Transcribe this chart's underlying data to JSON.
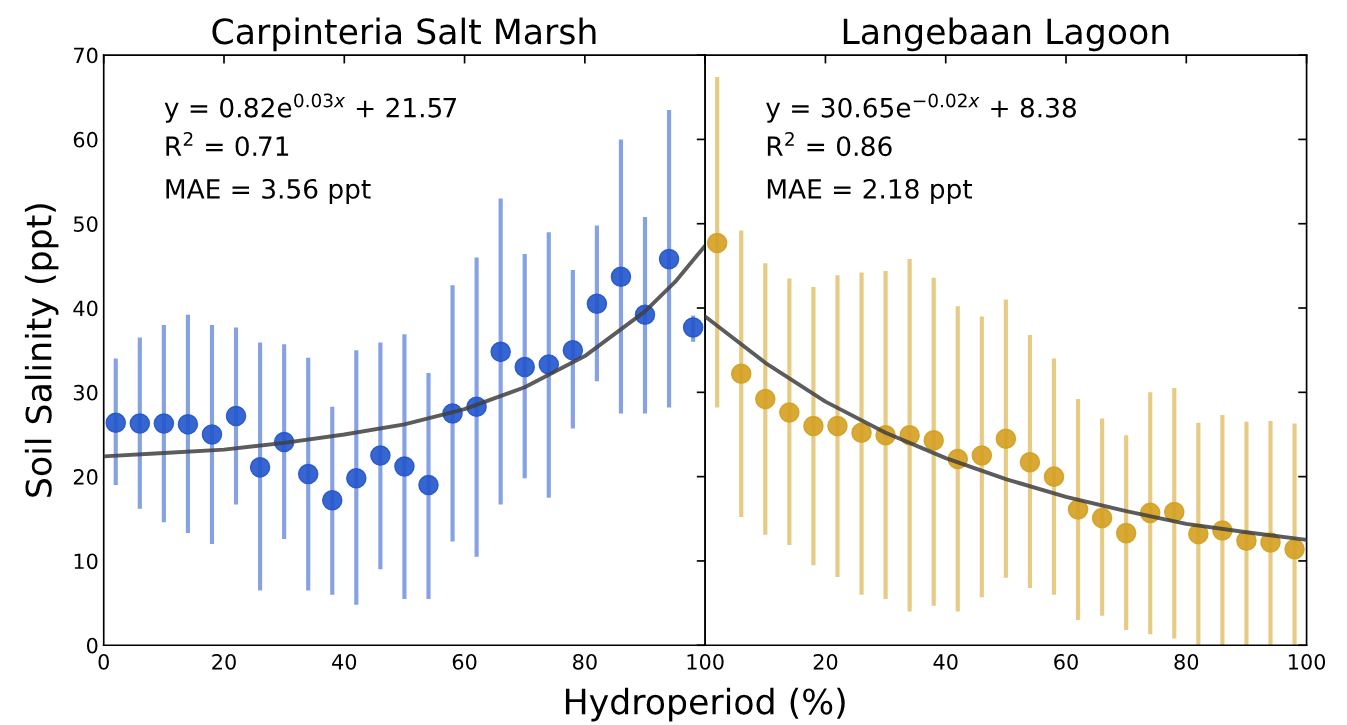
{
  "chart_data": [
    {
      "type": "scatter",
      "title": "Carpinteria Salt Marsh",
      "xlabel": "Hydroperiod (%)",
      "ylabel": "Soil Salinity (ppt)",
      "xlim": [
        0,
        100
      ],
      "ylim": [
        0,
        70
      ],
      "xticks": [
        0,
        20,
        40,
        60,
        80,
        100
      ],
      "yticks": [
        0,
        10,
        20,
        30,
        40,
        50,
        60,
        70
      ],
      "grid": false,
      "annotations": [
        "y = 0.82e$^{0.03x}$ + 21.57",
        "R$^{2}$ = 0.71",
        "MAE = 3.56 ppt"
      ],
      "series": [
        {
          "marker": "circle",
          "color": "#2255cc",
          "x": [
            2,
            6,
            10,
            14,
            18,
            22,
            26,
            30,
            34,
            38,
            42,
            46,
            50,
            54,
            58,
            62,
            66,
            70,
            74,
            78,
            82,
            86,
            90,
            94,
            98
          ],
          "values": [
            26.4,
            26.3,
            26.3,
            26.2,
            25,
            27.2,
            21.1,
            24.1,
            20.3,
            17.2,
            19.8,
            22.5,
            21.2,
            19,
            27.5,
            28.3,
            34.8,
            33,
            33.3,
            35,
            40.5,
            43.7,
            39.2,
            45.8,
            37.7
          ],
          "errors": [
            [
              19,
              34
            ],
            [
              16.2,
              36.5
            ],
            [
              14.6,
              38
            ],
            [
              13.3,
              39.2
            ],
            [
              12,
              38
            ],
            [
              16.7,
              37.7
            ],
            [
              6.5,
              35.9
            ],
            [
              12.6,
              35.7
            ],
            [
              6.5,
              34.1
            ],
            [
              6,
              28.3
            ],
            [
              4.8,
              35
            ],
            [
              9,
              35.9
            ],
            [
              5.5,
              36.9
            ],
            [
              5.5,
              32.3
            ],
            [
              12.3,
              42.7
            ],
            [
              10.5,
              46
            ],
            [
              16.7,
              53
            ],
            [
              19.8,
              46.4
            ],
            [
              17.5,
              49
            ],
            [
              25.7,
              44.5
            ],
            [
              31.3,
              49.8
            ],
            [
              27.5,
              60
            ],
            [
              27.5,
              50.8
            ],
            [
              28.2,
              63.5
            ],
            [
              36,
              39.1
            ]
          ]
        },
        {
          "type": "line",
          "marker": "none",
          "color": "#404040",
          "x": [
            0,
            10,
            20,
            30,
            40,
            50,
            60,
            70,
            80,
            90,
            95,
            100
          ],
          "values": [
            22.4,
            22.8,
            23.2,
            24.0,
            25.0,
            26.2,
            28.0,
            30.6,
            34.3,
            39.6,
            43.1,
            47.4
          ]
        }
      ]
    },
    {
      "type": "scatter",
      "title": "Langebaan Lagoon",
      "tick_labels": "x",
      "xlim": [
        0,
        100
      ],
      "ylim": [
        0,
        70
      ],
      "xticks": [
        {
          "value": 0,
          "label": null
        },
        20,
        40,
        60,
        80,
        100
      ],
      "yticks": [
        0,
        10,
        20,
        30,
        40,
        50,
        60,
        70
      ],
      "grid": false,
      "annotations": [
        "y = 30.65e$^{−0.02x}$ + 8.38",
        "R$^{2}$ = 0.86",
        "MAE = 2.18 ppt"
      ],
      "series": [
        {
          "marker": "circle",
          "color": "#d4a020",
          "x": [
            2,
            6,
            10,
            14,
            18,
            22,
            26,
            30,
            34,
            38,
            42,
            46,
            50,
            54,
            58,
            62,
            66,
            70,
            74,
            78,
            82,
            86,
            90,
            94,
            98
          ],
          "values": [
            47.7,
            32.2,
            29.2,
            27.6,
            26,
            26,
            25.2,
            24.9,
            24.9,
            24.3,
            22.1,
            22.5,
            24.5,
            21.7,
            20,
            16.1,
            15.1,
            13.3,
            15.7,
            15.8,
            13.2,
            13.6,
            12.4,
            12.2,
            11.4
          ],
          "errors": [
            [
              28.2,
              67.4
            ],
            [
              15.2,
              49.2
            ],
            [
              13.1,
              45.3
            ],
            [
              11.9,
              43.5
            ],
            [
              9.5,
              42.5
            ],
            [
              8.1,
              43.9
            ],
            [
              6,
              44.2
            ],
            [
              5.5,
              44.4
            ],
            [
              4,
              45.8
            ],
            [
              4.7,
              43.6
            ],
            [
              4,
              40.2
            ],
            [
              5.7,
              39
            ],
            [
              8,
              41
            ],
            [
              6.8,
              36.8
            ],
            [
              6,
              34
            ],
            [
              3,
              29.2
            ],
            [
              3.5,
              26.9
            ],
            [
              1.8,
              24.9
            ],
            [
              1.3,
              30
            ],
            [
              0.8,
              30.5
            ],
            [
              0,
              26.4
            ],
            [
              0,
              27.3
            ],
            [
              0,
              26.5
            ],
            [
              0,
              26.6
            ],
            [
              0,
              26.3
            ]
          ]
        },
        {
          "type": "line",
          "marker": "none",
          "color": "#404040",
          "x": [
            0,
            10,
            20,
            30,
            40,
            50,
            60,
            70,
            80,
            90,
            100
          ],
          "values": [
            39.0,
            33.5,
            28.9,
            25.2,
            22.2,
            19.7,
            17.6,
            15.9,
            14.4,
            13.4,
            12.5
          ]
        }
      ]
    }
  ]
}
